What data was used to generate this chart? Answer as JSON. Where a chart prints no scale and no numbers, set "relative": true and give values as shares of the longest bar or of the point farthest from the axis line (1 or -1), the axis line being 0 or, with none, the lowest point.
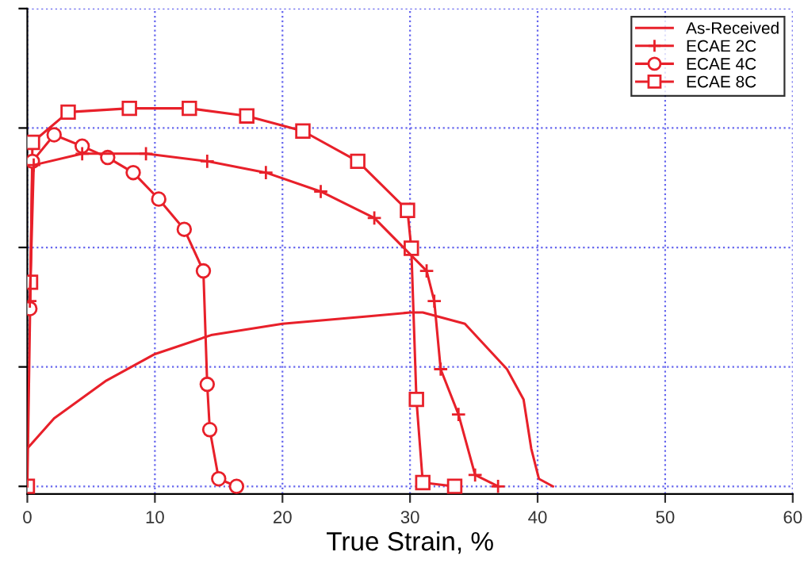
{
  "chart_data": {
    "type": "line",
    "xlabel": "True Strain, %",
    "relative": true,
    "xlim": [
      0,
      60
    ],
    "xticks": [
      0,
      10,
      20,
      30,
      40,
      50,
      60
    ],
    "tick_labels": "x",
    "grid": true,
    "legend": "top right",
    "line_style": "solid",
    "series": [
      {
        "name": "As-Received",
        "color": "#e8202a",
        "marker": "none",
        "x": [
          0,
          0,
          2.1,
          6.2,
          10,
          14.4,
          20,
          26.8,
          30,
          31,
          34.3,
          37.6,
          38.9,
          39.5,
          40.1,
          41.2
        ],
        "values": [
          0,
          0.1,
          0.18,
          0.28,
          0.35,
          0.4,
          0.43,
          0.45,
          0.46,
          0.46,
          0.43,
          0.31,
          0.23,
          0.1,
          0.02,
          0
        ]
      },
      {
        "name": "ECAE 2C",
        "color": "#e8202a",
        "marker": "cross",
        "x": [
          0.2,
          0.5,
          4.3,
          9.3,
          14.1,
          18.7,
          23.0,
          27.2,
          31.3,
          31.9,
          32.4,
          33.8,
          35.1,
          36.9
        ],
        "values": [
          0.49,
          0.85,
          0.88,
          0.88,
          0.86,
          0.83,
          0.78,
          0.71,
          0.57,
          0.49,
          0.31,
          0.19,
          0.03,
          0
        ]
      },
      {
        "name": "ECAE 4C",
        "color": "#e8202a",
        "marker": "circle",
        "x": [
          0.2,
          0.4,
          2.1,
          4.3,
          6.3,
          8.3,
          10.3,
          12.3,
          13.8,
          14.1,
          14.3,
          15.0,
          16.4
        ],
        "values": [
          0.47,
          0.86,
          0.93,
          0.9,
          0.87,
          0.83,
          0.76,
          0.68,
          0.57,
          0.27,
          0.15,
          0.02,
          0
        ]
      },
      {
        "name": "ECAE 8C",
        "color": "#e8202a",
        "marker": "square",
        "x": [
          0,
          0.25,
          0.4,
          3.2,
          8.0,
          12.7,
          17.2,
          21.6,
          25.9,
          29.8,
          30.1,
          30.5,
          31.0,
          33.5
        ],
        "values": [
          0,
          0.54,
          0.91,
          0.99,
          1.0,
          1.0,
          0.98,
          0.94,
          0.86,
          0.73,
          0.63,
          0.23,
          0.01,
          0
        ]
      }
    ]
  }
}
